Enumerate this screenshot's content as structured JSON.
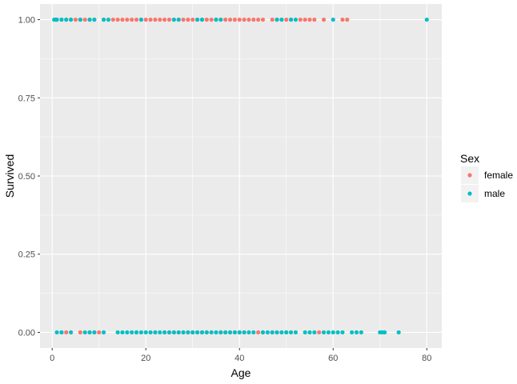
{
  "chart_data": {
    "type": "scatter",
    "title": "",
    "xlabel": "Age",
    "ylabel": "Survived",
    "xlim": [
      -2.6,
      83.2
    ],
    "ylim": [
      -0.05,
      1.05
    ],
    "x_ticks": [
      0,
      20,
      40,
      60,
      80
    ],
    "x_tick_labels": [
      "0",
      "20",
      "40",
      "60",
      "80"
    ],
    "y_ticks": [
      0,
      0.25,
      0.5,
      0.75,
      1
    ],
    "y_tick_labels": [
      "0.00",
      "0.25",
      "0.50",
      "0.75",
      "1.00"
    ],
    "grid": true,
    "legend": {
      "title": "Sex",
      "position": "right",
      "entries": [
        {
          "label": "female",
          "color": "#F8766D"
        },
        {
          "label": "male",
          "color": "#00BFC4"
        }
      ]
    },
    "series": [
      {
        "name": "female",
        "color": "#F8766D",
        "x": [
          1,
          2,
          3,
          4,
          5,
          6,
          7,
          8,
          9,
          11,
          13,
          14,
          15,
          16,
          17,
          18,
          19,
          20,
          21,
          22,
          23,
          24,
          25,
          26,
          27,
          28,
          29,
          30,
          31,
          32,
          33,
          34,
          35,
          36,
          37,
          38,
          39,
          40,
          41,
          42,
          43,
          44,
          45,
          47,
          48,
          49,
          50,
          51,
          53,
          54,
          55,
          56,
          58,
          62,
          63,
          2,
          3,
          6,
          8,
          9,
          10,
          18,
          22,
          24,
          25,
          26,
          27,
          28,
          29,
          30,
          31,
          32,
          33,
          36,
          37,
          38,
          39,
          40,
          41,
          44,
          45,
          47,
          48,
          50,
          57
        ],
        "y": [
          1,
          1,
          1,
          1,
          1,
          1,
          1,
          1,
          1,
          1,
          1,
          1,
          1,
          1,
          1,
          1,
          1,
          1,
          1,
          1,
          1,
          1,
          1,
          1,
          1,
          1,
          1,
          1,
          1,
          1,
          1,
          1,
          1,
          1,
          1,
          1,
          1,
          1,
          1,
          1,
          1,
          1,
          1,
          1,
          1,
          1,
          1,
          1,
          1,
          1,
          1,
          1,
          1,
          1,
          1,
          0,
          0,
          0,
          0,
          0,
          0,
          0,
          0,
          0,
          0,
          0,
          0,
          0,
          0,
          0,
          0,
          0,
          0,
          0,
          0,
          0,
          0,
          0,
          0,
          0,
          0,
          0,
          0,
          0,
          0
        ]
      },
      {
        "name": "male",
        "color": "#00BFC4",
        "x": [
          0.42,
          0.67,
          0.83,
          0.92,
          1,
          2,
          3,
          4,
          6,
          8,
          9,
          11,
          12,
          19,
          26,
          27,
          31,
          32,
          35,
          36,
          48,
          49,
          51,
          52,
          60,
          80,
          1,
          2,
          4,
          7,
          8,
          9,
          11,
          14,
          15,
          16,
          17,
          18,
          19,
          20,
          21,
          22,
          23,
          24,
          25,
          26,
          27,
          28,
          29,
          30,
          31,
          32,
          33,
          34,
          35,
          36,
          37,
          38,
          39,
          40,
          41,
          42,
          43,
          45,
          46,
          47,
          48,
          49,
          50,
          51,
          52,
          54,
          55,
          56,
          58,
          59,
          60,
          61,
          62,
          64,
          65,
          66,
          70,
          70.5,
          71,
          74
        ],
        "y": [
          1,
          1,
          1,
          1,
          1,
          1,
          1,
          1,
          1,
          1,
          1,
          1,
          1,
          1,
          1,
          1,
          1,
          1,
          1,
          1,
          1,
          1,
          1,
          1,
          1,
          1,
          0,
          0,
          0,
          0,
          0,
          0,
          0,
          0,
          0,
          0,
          0,
          0,
          0,
          0,
          0,
          0,
          0,
          0,
          0,
          0,
          0,
          0,
          0,
          0,
          0,
          0,
          0,
          0,
          0,
          0,
          0,
          0,
          0,
          0,
          0,
          0,
          0,
          0,
          0,
          0,
          0,
          0,
          0,
          0,
          0,
          0,
          0,
          0,
          0,
          0,
          0,
          0,
          0,
          0,
          0,
          0,
          0,
          0,
          0,
          0
        ]
      }
    ]
  }
}
